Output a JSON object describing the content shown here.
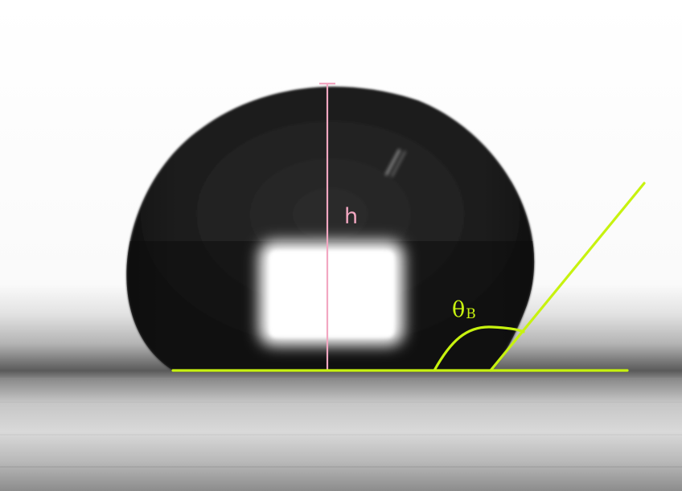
{
  "annotations": {
    "height_label": "h",
    "angle_symbol": "θ",
    "angle_subscript": "B"
  },
  "colors": {
    "height_marker": "#f2a7c1",
    "angle_marker": "#c7f20f",
    "droplet": "#1a1a1a",
    "background": "#ffffff"
  },
  "icons": {
    "droplet": "water-droplet",
    "glare": "specular-highlight"
  }
}
